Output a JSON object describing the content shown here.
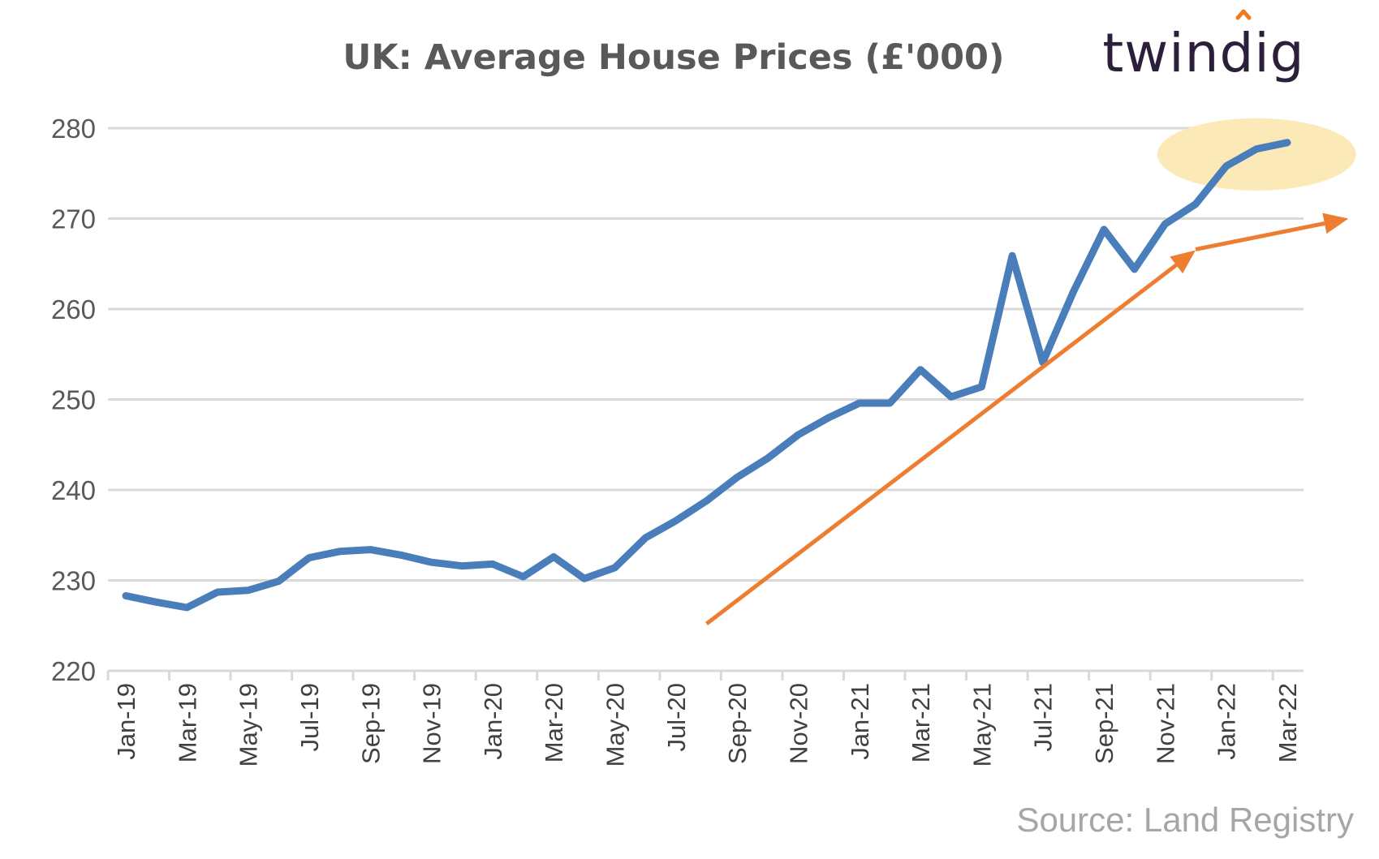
{
  "logo": {
    "text": "twindig"
  },
  "source": {
    "text": "Source: Land Registry"
  },
  "colors": {
    "series": "#4a7ebb",
    "trend_arrow": "#ed7d31",
    "highlight": "#fbe9b7",
    "grid": "#d9d9d9",
    "logo_accent": "#f07c1f"
  },
  "chart_data": {
    "type": "line",
    "title": "UK: Average House Prices (£'000)",
    "xlabel": "",
    "ylabel": "",
    "ylim": [
      220,
      280
    ],
    "yticks": [
      220,
      230,
      240,
      250,
      260,
      270,
      280
    ],
    "grid": true,
    "x": [
      "Jan-19",
      "Feb-19",
      "Mar-19",
      "Apr-19",
      "May-19",
      "Jun-19",
      "Jul-19",
      "Aug-19",
      "Sep-19",
      "Oct-19",
      "Nov-19",
      "Dec-19",
      "Jan-20",
      "Feb-20",
      "Mar-20",
      "Apr-20",
      "May-20",
      "Jun-20",
      "Jul-20",
      "Aug-20",
      "Sep-20",
      "Oct-20",
      "Nov-20",
      "Dec-20",
      "Jan-21",
      "Feb-21",
      "Mar-21",
      "Apr-21",
      "May-21",
      "Jun-21",
      "Jul-21",
      "Aug-21",
      "Sep-21",
      "Oct-21",
      "Nov-21",
      "Dec-21",
      "Jan-22",
      "Feb-22",
      "Mar-22"
    ],
    "x_tick_labels": [
      "Jan-19",
      "Mar-19",
      "May-19",
      "Jul-19",
      "Sep-19",
      "Nov-19",
      "Jan-20",
      "Mar-20",
      "May-20",
      "Jul-20",
      "Sep-20",
      "Nov-20",
      "Jan-21",
      "Mar-21",
      "May-21",
      "Jul-21",
      "Sep-21",
      "Nov-21",
      "Jan-22",
      "Mar-22"
    ],
    "series": [
      {
        "values": [
          228.3,
          227.6,
          227.0,
          228.7,
          228.9,
          229.9,
          232.5,
          233.2,
          233.4,
          232.8,
          232.0,
          231.6,
          231.8,
          230.4,
          232.6,
          230.2,
          231.4,
          234.7,
          236.6,
          238.8,
          241.4,
          243.5,
          246.1,
          248.0,
          249.6,
          249.6,
          253.3,
          250.3,
          251.4,
          265.9,
          254.1,
          261.9,
          268.8,
          264.4,
          269.4,
          271.6,
          275.8,
          277.7,
          278.4
        ]
      }
    ],
    "annotations": {
      "trend_arrow_1": {
        "from": {
          "x": "Aug-20",
          "y": 225.2
        },
        "to": {
          "x": "Dec-21",
          "y": 266.5
        }
      },
      "trend_arrow_2": {
        "from": {
          "x": "Dec-21",
          "y": 266.6
        },
        "to": {
          "x": "May-22",
          "y": 270.0
        }
      },
      "highlight_ellipse": {
        "center": {
          "x": "Feb-22",
          "y": 277.1
        },
        "x_span_months": 6.5,
        "y_span": 8.0
      }
    }
  }
}
